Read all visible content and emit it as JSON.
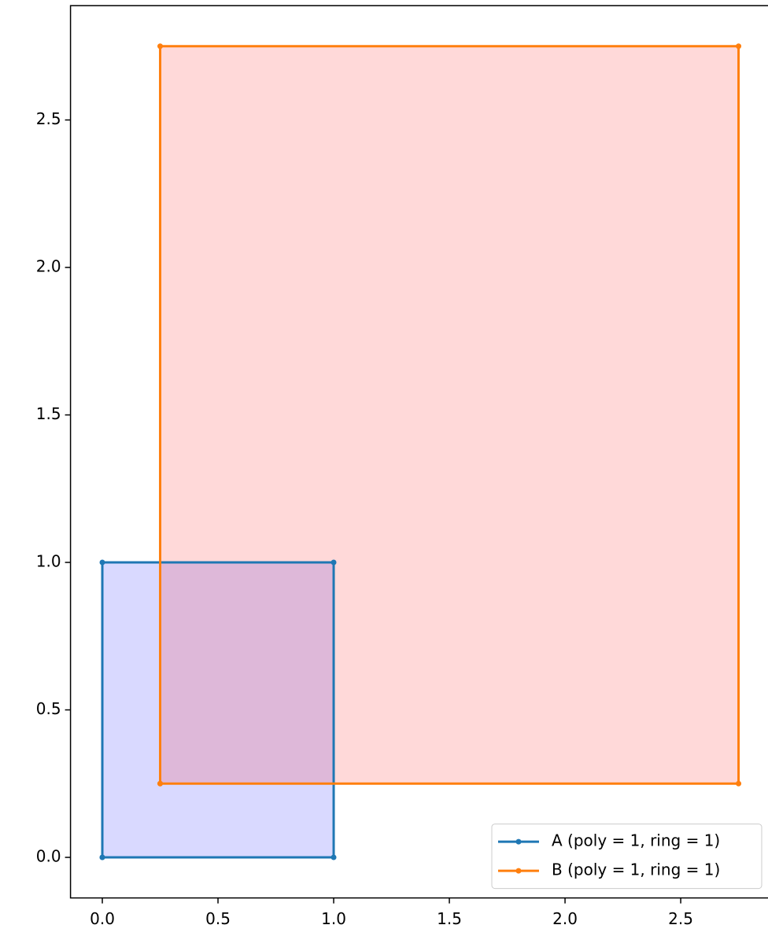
{
  "chart_data": {
    "type": "polygon",
    "series": [
      {
        "name": "A (poly = 1, ring = 1)",
        "color": "#1f77b4",
        "fill": "#0000ff",
        "fill_alpha": 0.15,
        "x": [
          0,
          1,
          1,
          0,
          0
        ],
        "values": [
          0,
          0,
          1,
          1,
          0
        ]
      },
      {
        "name": "B (poly = 1, ring = 1)",
        "color": "#ff7f0e",
        "fill": "#ff0000",
        "fill_alpha": 0.15,
        "x": [
          0.25,
          2.75,
          2.75,
          0.25,
          0.25
        ],
        "values": [
          0.25,
          0.25,
          2.75,
          2.75,
          0.25
        ]
      }
    ],
    "xlim": [
      -0.1375,
      2.8875
    ],
    "xticks": [
      {
        "value": 0,
        "label": "0.0"
      },
      0.5,
      {
        "value": 1,
        "label": "1.0"
      },
      1.5,
      {
        "value": 2,
        "label": "2.0"
      },
      2.5
    ],
    "ylim": [
      -0.1375,
      2.8875
    ],
    "yticks": [
      {
        "value": 0,
        "label": "0.0"
      },
      0.5,
      {
        "value": 1,
        "label": "1.0"
      },
      1.5,
      {
        "value": 2,
        "label": "2.0"
      },
      2.5
    ],
    "grid": false,
    "legend": "lower right"
  }
}
